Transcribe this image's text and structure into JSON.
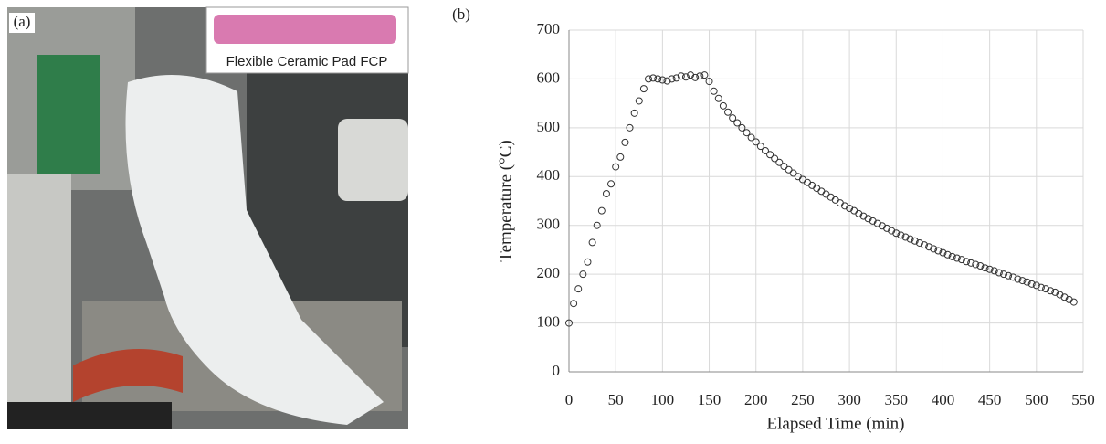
{
  "panel_a": {
    "label": "(a)",
    "inset_caption": "Flexible Ceramic Pad FCP"
  },
  "chart_data": {
    "type": "scatter",
    "panel_label": "(b)",
    "x_label": "Elapsed Time (min)",
    "y_label": "Temperature (°C)",
    "xlim": [
      0,
      550
    ],
    "ylim": [
      0,
      700
    ],
    "xticks": [
      0,
      50,
      100,
      150,
      200,
      250,
      300,
      350,
      400,
      450,
      500,
      550
    ],
    "yticks": [
      0,
      100,
      200,
      300,
      400,
      500,
      600,
      700
    ],
    "grid": true,
    "color": "#333333",
    "x": [
      0,
      5,
      10,
      15,
      20,
      25,
      30,
      35,
      40,
      45,
      50,
      55,
      60,
      65,
      70,
      75,
      80,
      85,
      90,
      95,
      100,
      105,
      110,
      115,
      120,
      125,
      130,
      135,
      140,
      145,
      150,
      155,
      160,
      165,
      170,
      175,
      180,
      185,
      190,
      195,
      200,
      205,
      210,
      215,
      220,
      225,
      230,
      235,
      240,
      245,
      250,
      255,
      260,
      265,
      270,
      275,
      280,
      285,
      290,
      295,
      300,
      305,
      310,
      315,
      320,
      325,
      330,
      335,
      340,
      345,
      350,
      355,
      360,
      365,
      370,
      375,
      380,
      385,
      390,
      395,
      400,
      405,
      410,
      415,
      420,
      425,
      430,
      435,
      440,
      445,
      450,
      455,
      460,
      465,
      470,
      475,
      480,
      485,
      490,
      495,
      500,
      505,
      510,
      515,
      520,
      525,
      530,
      535,
      540
    ],
    "values": [
      100,
      140,
      170,
      200,
      225,
      265,
      300,
      330,
      365,
      385,
      420,
      440,
      470,
      500,
      530,
      555,
      580,
      600,
      602,
      600,
      598,
      596,
      600,
      602,
      606,
      604,
      608,
      603,
      606,
      608,
      595,
      575,
      560,
      545,
      532,
      520,
      510,
      500,
      490,
      480,
      471,
      462,
      453,
      445,
      437,
      429,
      421,
      414,
      407,
      400,
      394,
      388,
      382,
      376,
      370,
      364,
      358,
      352,
      346,
      340,
      335,
      330,
      324,
      319,
      314,
      309,
      304,
      299,
      294,
      289,
      284,
      280,
      276,
      272,
      268,
      264,
      260,
      256,
      252,
      248,
      244,
      240,
      236,
      233,
      230,
      226,
      223,
      220,
      217,
      213,
      210,
      207,
      203,
      200,
      197,
      194,
      190,
      187,
      184,
      180,
      177,
      173,
      170,
      166,
      163,
      158,
      153,
      148,
      143
    ]
  }
}
